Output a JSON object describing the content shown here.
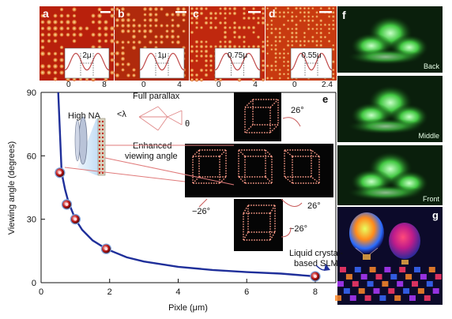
{
  "panels": {
    "a": {
      "letter": "a",
      "scale_label": "2μ",
      "x_ticks": [
        "0",
        "8"
      ]
    },
    "b": {
      "letter": "b",
      "scale_label": "1μ",
      "x_ticks": [
        "0",
        "4"
      ]
    },
    "c": {
      "letter": "c",
      "scale_label": "0.75μ",
      "x_ticks": [
        "0",
        "4"
      ]
    },
    "d": {
      "letter": "d",
      "scale_label": "0.55μ",
      "x_ticks": [
        "0",
        "2.4"
      ]
    },
    "e": {
      "letter": "e"
    },
    "f": {
      "letter": "f",
      "views": [
        "Back",
        "Middle",
        "Front"
      ]
    },
    "g": {
      "letter": "g"
    }
  },
  "inset_labels": {
    "high_na": "High NA",
    "lambda": "<λ",
    "full_parallax": "Full parallax",
    "theta": "θ",
    "enhanced": "Enhanced",
    "viewing_angle": "viewing angle",
    "angle_top": "26°",
    "angle_left": "−26°",
    "angle_right": "26°",
    "angle_bottom": "−26°",
    "slm_line1": "Liquid crystal-",
    "slm_line2": "based SLM"
  },
  "chart_data": {
    "type": "scatter",
    "xlabel": "Pixle (μm)",
    "ylabel": "Viewing angle (degrees)",
    "xlim": [
      0,
      8.6
    ],
    "ylim": [
      0,
      90
    ],
    "x_ticks": [
      "0",
      "2",
      "4",
      "6",
      "8"
    ],
    "y_ticks": [
      "0",
      "30",
      "60",
      "90"
    ],
    "grid": false,
    "series": [
      {
        "kind": "markers",
        "x": [
          0.55,
          0.75,
          1.0,
          1.9,
          8.0
        ],
        "y": [
          52,
          37,
          30,
          16,
          3
        ]
      },
      {
        "kind": "fit-curve",
        "x": [
          0.5,
          0.6,
          0.7,
          0.8,
          1.0,
          1.2,
          1.5,
          1.9,
          2.5,
          3.0,
          4.0,
          5.0,
          6.0,
          7.0,
          8.0
        ],
        "y": [
          90,
          52,
          44,
          38,
          30,
          25,
          20,
          16,
          12,
          10,
          7.5,
          6,
          5,
          4.3,
          3
        ]
      }
    ],
    "colors": {
      "markers": "#c01818",
      "curve": "#1f2f9a",
      "arrow": "#1f2f9a"
    }
  }
}
